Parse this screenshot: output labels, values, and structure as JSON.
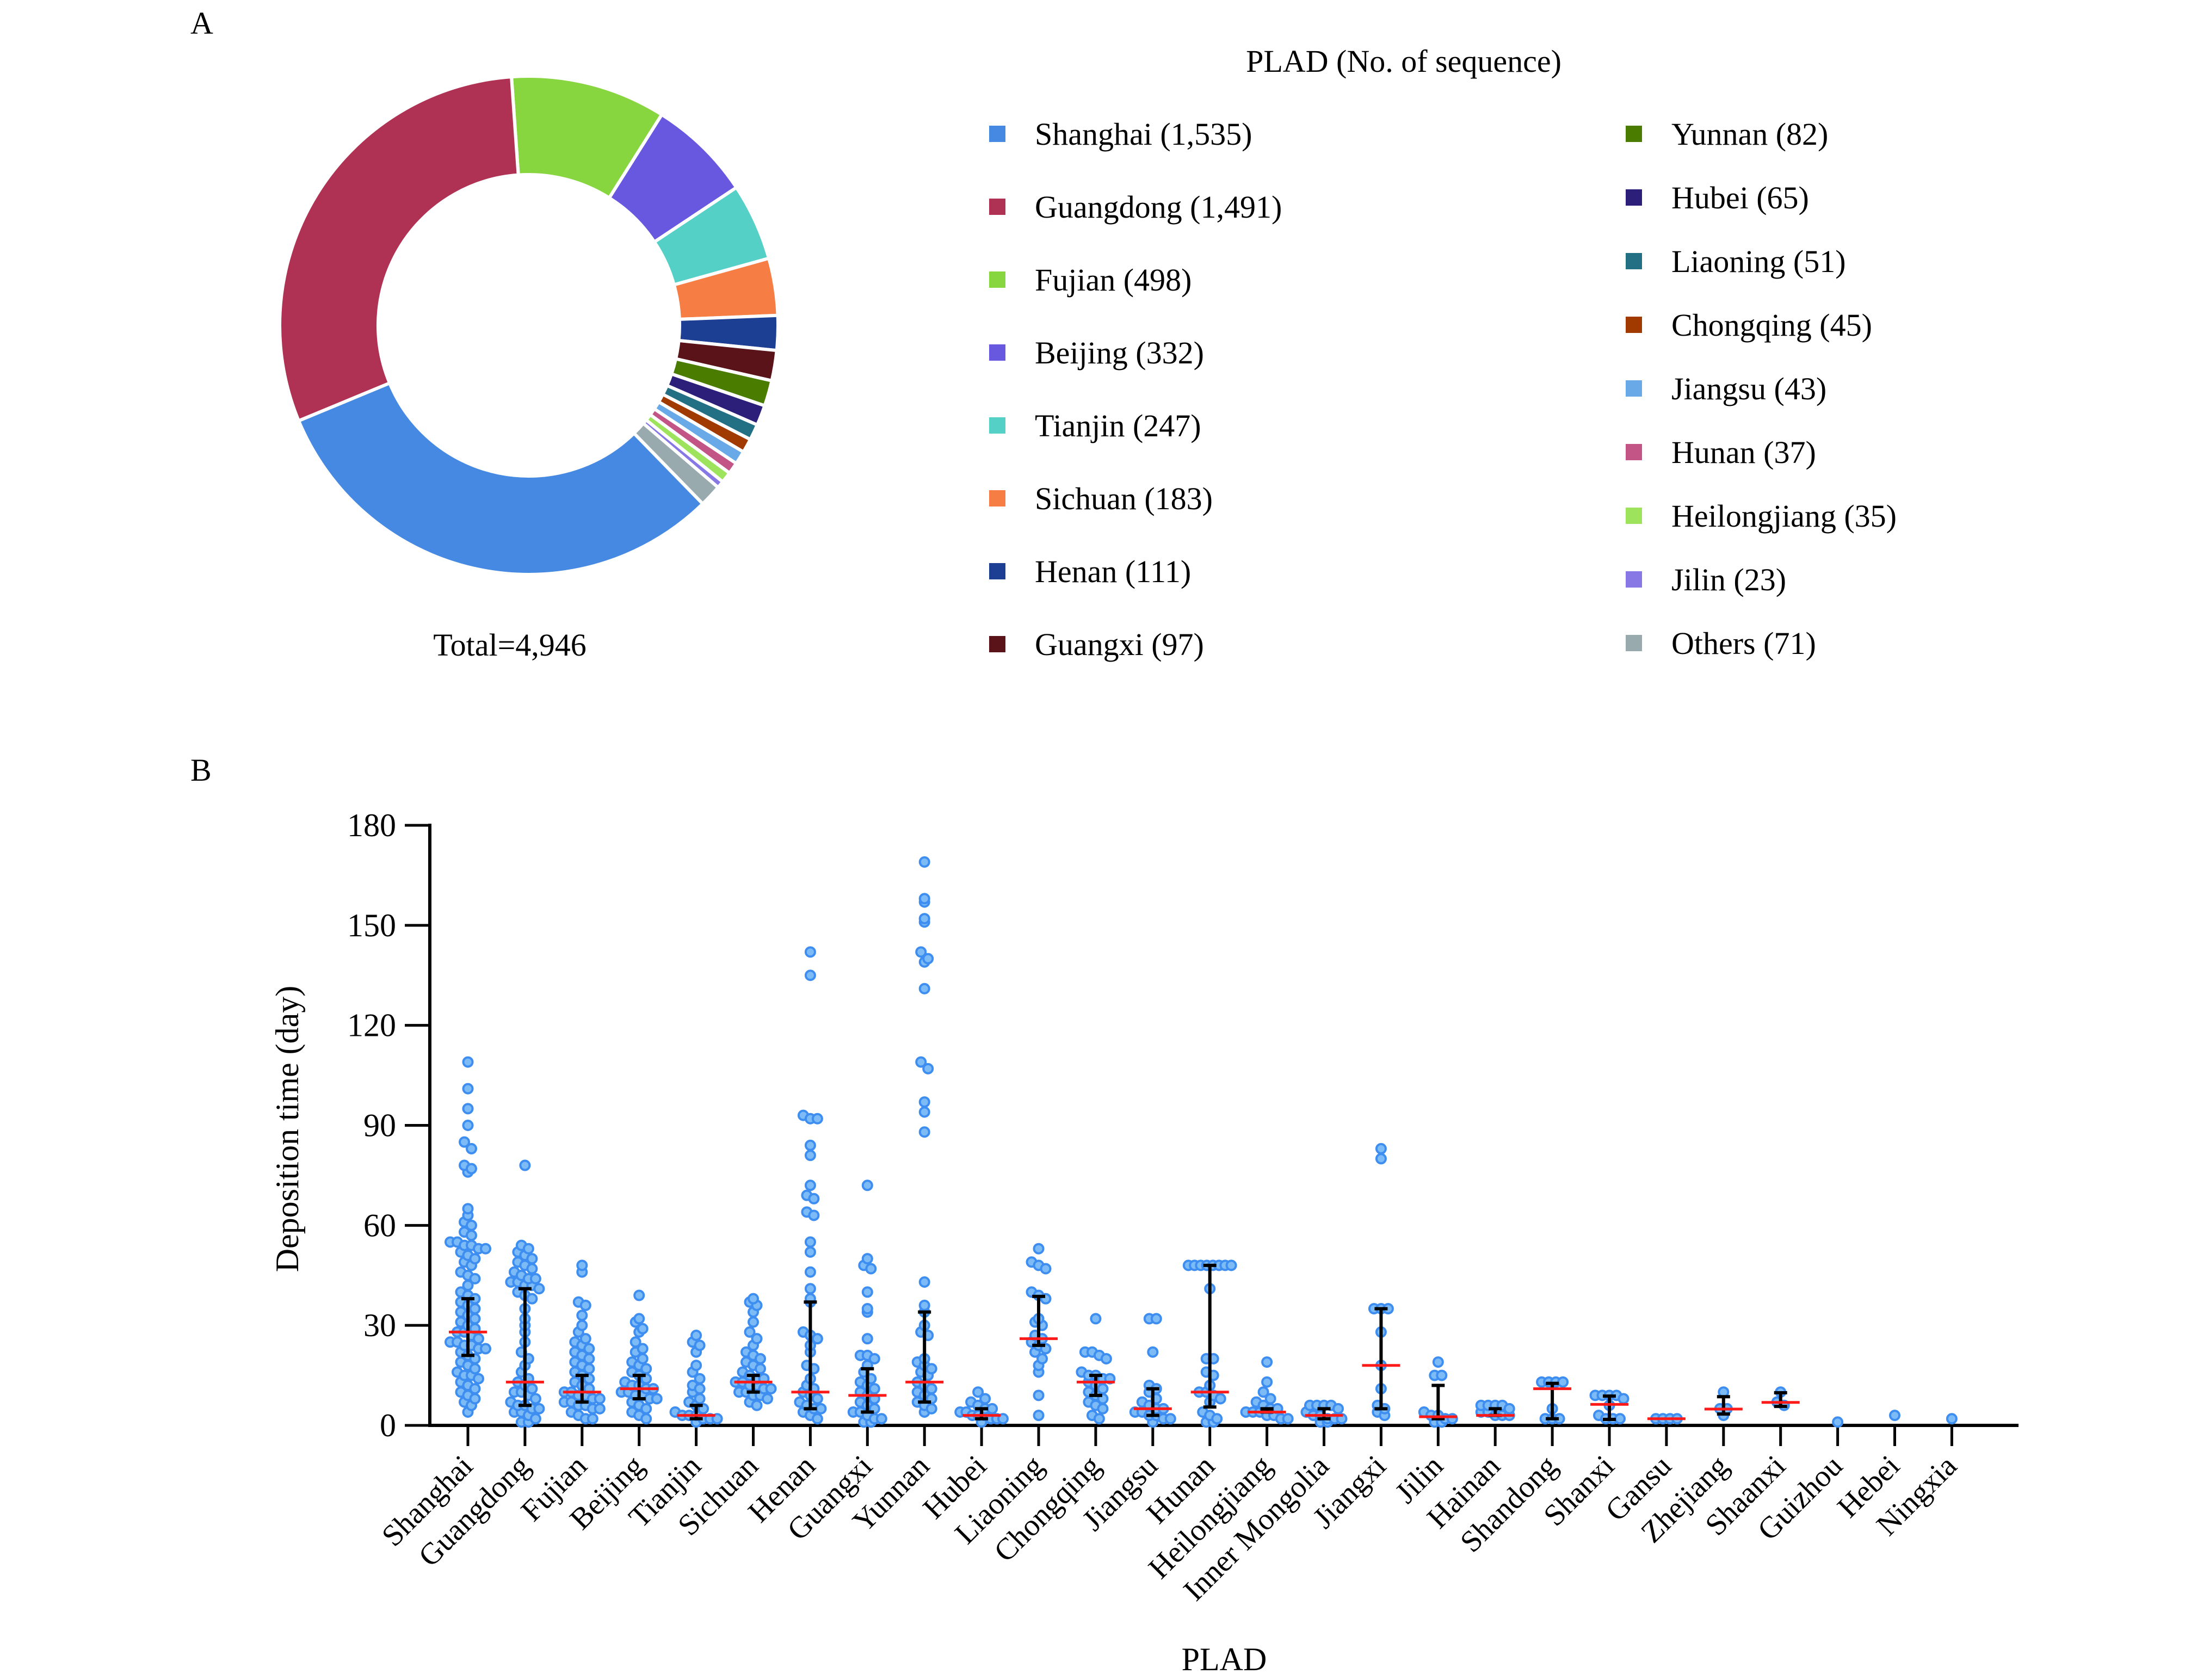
{
  "chart_data": [
    {
      "type": "pie",
      "panel_label": "A",
      "legend_title": "PLAD (No. of sequence)",
      "total_label": "Total=4,946",
      "legend_placement": "right",
      "categories": [
        "Shanghai",
        "Guangdong",
        "Fujian",
        "Beijing",
        "Tianjin",
        "Sichuan",
        "Henan",
        "Guangxi",
        "Yunnan",
        "Hubei",
        "Liaoning",
        "Chongqing",
        "Jiangsu",
        "Hunan",
        "Heilongjiang",
        "Jilin",
        "Others"
      ],
      "values": [
        1535,
        1491,
        498,
        332,
        247,
        183,
        111,
        97,
        82,
        65,
        51,
        45,
        43,
        37,
        35,
        23,
        71
      ],
      "legend_labels": [
        "Shanghai (1,535)",
        "Guangdong (1,491)",
        "Fujian (498)",
        "Beijing (332)",
        "Tianjin (247)",
        "Sichuan (183)",
        "Henan (111)",
        "Guangxi (97)",
        "Yunnan (82)",
        "Hubei (65)",
        "Liaoning (51)",
        "Chongqing (45)",
        "Jiangsu (43)",
        "Hunan (37)",
        "Heilongjiang (35)",
        "Jilin (23)",
        "Others (71)"
      ],
      "colors": [
        "#4589E3",
        "#AF3254",
        "#88D63F",
        "#6858E0",
        "#55D0C6",
        "#F67E45",
        "#1C3F93",
        "#5A1419",
        "#4A7C00",
        "#2B1F7A",
        "#236F83",
        "#A13A00",
        "#69A9E8",
        "#C25585",
        "#9EE35C",
        "#8878E6",
        "#99AAAE"
      ]
    },
    {
      "type": "scatter",
      "panel_label": "B",
      "xlabel": "PLAD",
      "ylabel": "Deposition time (day)",
      "ylim": [
        0,
        180
      ],
      "yticks": [
        "0",
        "30",
        "60",
        "90",
        "120",
        "150",
        "180"
      ],
      "grid": false,
      "point_color": "#3D8EF0",
      "point_fill": "#7DBBF7",
      "median_color": "#FF1A1A",
      "errorbar_color": "#000000",
      "categories": [
        "Shanghai",
        "Guangdong",
        "Fujian",
        "Beijing",
        "Tianjin",
        "Sichuan",
        "Henan",
        "Guangxi",
        "Yunnan",
        "Hubei",
        "Liaoning",
        "Chongqing",
        "Jiangsu",
        "Hunan",
        "Heilongjiang",
        "Inner Mongolia",
        "Jiangxi",
        "Jilin",
        "Hainan",
        "Shandong",
        "Shanxi",
        "Gansu",
        "Zhejiang",
        "Shaanxi",
        "Guizhou",
        "Hebei",
        "Ningxia"
      ],
      "median": [
        28,
        13,
        10,
        11,
        3,
        13,
        10,
        9,
        13,
        3,
        26,
        13,
        5,
        10,
        4,
        3,
        18,
        2.6,
        3,
        11,
        6.3,
        2,
        4.9,
        6.9,
        1,
        3,
        2
      ],
      "q1": [
        21,
        6,
        7,
        8,
        2,
        10,
        5,
        4,
        7,
        2,
        24,
        9,
        3,
        5.5,
        4,
        2,
        5,
        2,
        3,
        2,
        1.8,
        2,
        3.4,
        5.7,
        1,
        3,
        2
      ],
      "q3": [
        38,
        41,
        15,
        15,
        6,
        15,
        37,
        17,
        34,
        5,
        38.7,
        15,
        11,
        48,
        5,
        5,
        35,
        12,
        5,
        12.6,
        8.8,
        2,
        8.6,
        9.8,
        1,
        3,
        2
      ],
      "points": [
        [
          109,
          101,
          95,
          90,
          85,
          83,
          78,
          77,
          76,
          65,
          63,
          61,
          60,
          58,
          57,
          55,
          55,
          54,
          54,
          53,
          53,
          52,
          51,
          50,
          49,
          48,
          46,
          45,
          44,
          42,
          40,
          39,
          38,
          37,
          36,
          35,
          34,
          33,
          32,
          31,
          30,
          29,
          28,
          28,
          27,
          26,
          25,
          25,
          24,
          24,
          23,
          23,
          22,
          21,
          20,
          19,
          18,
          17,
          16,
          15,
          15,
          14,
          13,
          12,
          11,
          10,
          9,
          8,
          7,
          6,
          4
        ],
        [
          78,
          54,
          53,
          52,
          51,
          50,
          49,
          48,
          47,
          46,
          45,
          44,
          44,
          43,
          43,
          42,
          42,
          41,
          40,
          39,
          38,
          35,
          32,
          30,
          28,
          25,
          22,
          20,
          18,
          16,
          14,
          13,
          12,
          11,
          10,
          10,
          9,
          8,
          7,
          6,
          6,
          5,
          5,
          4,
          4,
          3,
          2,
          1,
          1
        ],
        [
          48,
          46,
          37,
          36,
          33,
          30,
          28,
          26,
          25,
          24,
          23,
          22,
          21,
          20,
          19,
          18,
          17,
          16,
          15,
          14,
          13,
          12,
          11,
          10,
          10,
          9,
          9,
          8,
          8,
          7,
          7,
          6,
          6,
          5,
          5,
          4,
          3,
          2,
          2
        ],
        [
          39,
          32,
          31,
          29,
          28,
          25,
          23,
          22,
          20,
          19,
          18,
          17,
          16,
          15,
          14,
          13,
          12,
          12,
          11,
          11,
          10,
          10,
          9,
          9,
          8,
          8,
          7,
          6,
          5,
          4,
          3,
          2
        ],
        [
          27,
          25,
          24,
          22,
          18,
          16,
          14,
          12,
          11,
          10,
          8,
          7,
          6,
          5,
          4,
          3,
          3,
          3,
          2,
          2,
          2,
          1
        ],
        [
          38,
          37,
          36,
          34,
          31,
          28,
          26,
          24,
          22,
          21,
          20,
          19,
          18,
          17,
          16,
          15,
          14,
          14,
          13,
          13,
          12,
          12,
          11,
          11,
          10,
          10,
          9,
          9,
          8,
          7,
          6
        ],
        [
          142,
          135,
          93,
          92,
          92,
          84,
          81,
          72,
          69,
          68,
          64,
          63,
          55,
          52,
          46,
          41,
          38,
          37,
          28,
          27,
          26,
          24,
          22,
          18,
          17,
          14,
          12,
          11,
          10,
          9,
          8,
          7,
          6,
          5,
          5,
          4,
          3,
          2
        ],
        [
          72,
          50,
          48,
          47,
          40,
          35,
          34,
          26,
          21,
          21,
          20,
          18,
          16,
          14,
          13,
          12,
          11,
          10,
          9,
          8,
          7,
          6,
          5,
          4,
          4,
          3,
          2,
          2,
          1,
          1
        ],
        [
          169,
          158,
          157,
          152,
          151,
          142,
          140,
          139,
          131,
          109,
          107,
          97,
          94,
          88,
          43,
          36,
          34,
          30,
          28,
          27,
          20,
          19,
          18,
          17,
          16,
          15,
          13,
          12,
          11,
          10,
          9,
          8,
          7,
          6,
          5,
          4
        ],
        [
          10,
          8,
          7,
          6,
          5,
          5,
          4,
          4,
          3,
          3,
          3,
          2,
          2,
          2,
          1
        ],
        [
          53,
          49,
          48,
          47,
          40,
          39,
          38,
          32,
          31,
          30,
          27,
          26,
          25,
          24,
          23,
          22,
          20,
          18,
          16,
          9,
          3
        ],
        [
          32,
          22,
          22,
          21,
          20,
          16,
          15,
          15,
          14,
          14,
          13,
          12,
          11,
          10,
          9,
          8,
          7,
          6,
          5,
          3,
          2
        ],
        [
          32,
          32,
          22,
          12,
          11,
          10,
          8,
          7,
          6,
          5,
          5,
          4,
          4,
          3,
          3,
          2,
          2,
          1
        ],
        [
          48,
          48,
          48,
          48,
          48,
          48,
          48,
          48,
          41,
          20,
          20,
          16,
          15,
          12,
          10,
          10,
          9,
          8,
          7,
          4,
          3,
          2,
          1,
          1
        ],
        [
          19,
          13,
          10,
          8,
          7,
          6,
          5,
          5,
          4,
          4,
          4,
          3,
          3,
          2,
          2
        ],
        [
          6,
          6,
          6,
          6,
          5,
          4,
          3,
          3,
          2,
          2,
          2,
          1,
          1
        ],
        [
          83,
          80,
          35,
          35,
          35,
          28,
          18,
          11,
          6,
          5,
          4,
          3
        ],
        [
          19,
          15,
          15,
          4,
          3,
          3,
          2,
          2,
          1,
          1
        ],
        [
          6,
          6,
          6,
          6,
          5,
          4,
          4,
          3,
          3,
          3
        ],
        [
          13,
          13,
          13,
          13,
          5,
          2,
          2,
          2
        ],
        [
          9,
          9,
          9,
          9,
          8,
          6,
          3,
          2,
          2,
          2
        ],
        [
          2,
          2,
          2,
          2
        ],
        [
          10,
          5,
          5,
          3
        ],
        [
          10,
          7,
          6
        ],
        [
          1
        ],
        [
          3
        ],
        [
          2
        ]
      ]
    }
  ]
}
